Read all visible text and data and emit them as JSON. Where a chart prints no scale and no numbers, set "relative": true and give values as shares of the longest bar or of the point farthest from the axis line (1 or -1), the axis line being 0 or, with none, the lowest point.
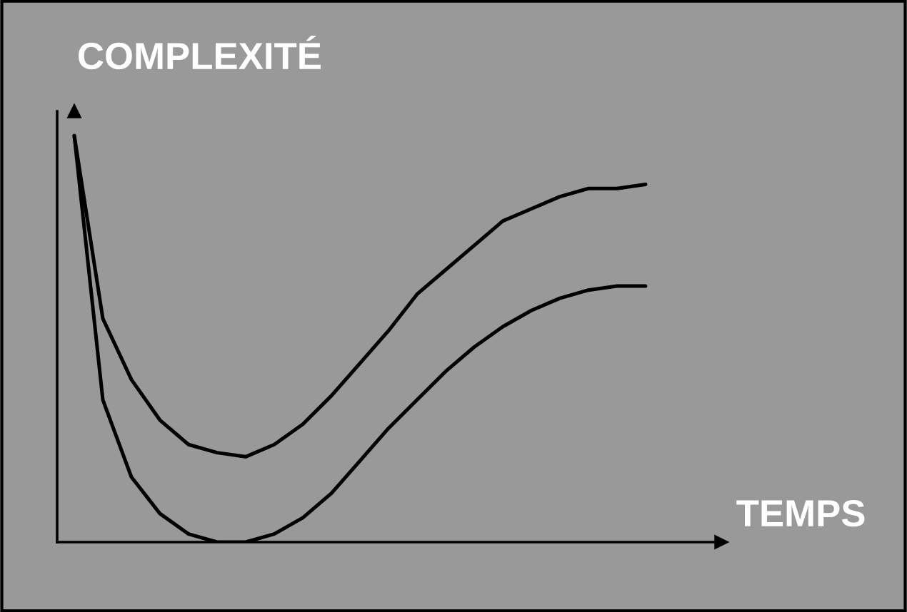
{
  "chart_data": {
    "type": "line",
    "relative": true,
    "xlabel": "TEMPS",
    "ylabel": "COMPLEXITÉ",
    "categories": [
      null,
      null,
      null,
      null,
      null,
      null,
      null,
      null,
      null,
      null,
      null,
      null,
      null,
      null,
      null,
      null,
      null,
      null,
      null,
      null,
      null
    ],
    "series": [
      {
        "color": "#000000",
        "values": [
          1.0,
          0.55,
          0.4,
          0.3,
          0.24,
          0.22,
          0.21,
          0.24,
          0.29,
          0.36,
          0.44,
          0.52,
          0.61,
          0.67,
          0.73,
          0.79,
          0.82,
          0.85,
          0.87,
          0.87,
          0.88
        ]
      },
      {
        "color": "#000000",
        "values": [
          1.0,
          0.35,
          0.16,
          0.07,
          0.02,
          0.0,
          0.0,
          0.02,
          0.06,
          0.12,
          0.2,
          0.28,
          0.35,
          0.42,
          0.48,
          0.53,
          0.57,
          0.6,
          0.62,
          0.63,
          0.63
        ]
      }
    ],
    "grid": false,
    "legend": false,
    "marker": "none",
    "line_style": "solid"
  }
}
